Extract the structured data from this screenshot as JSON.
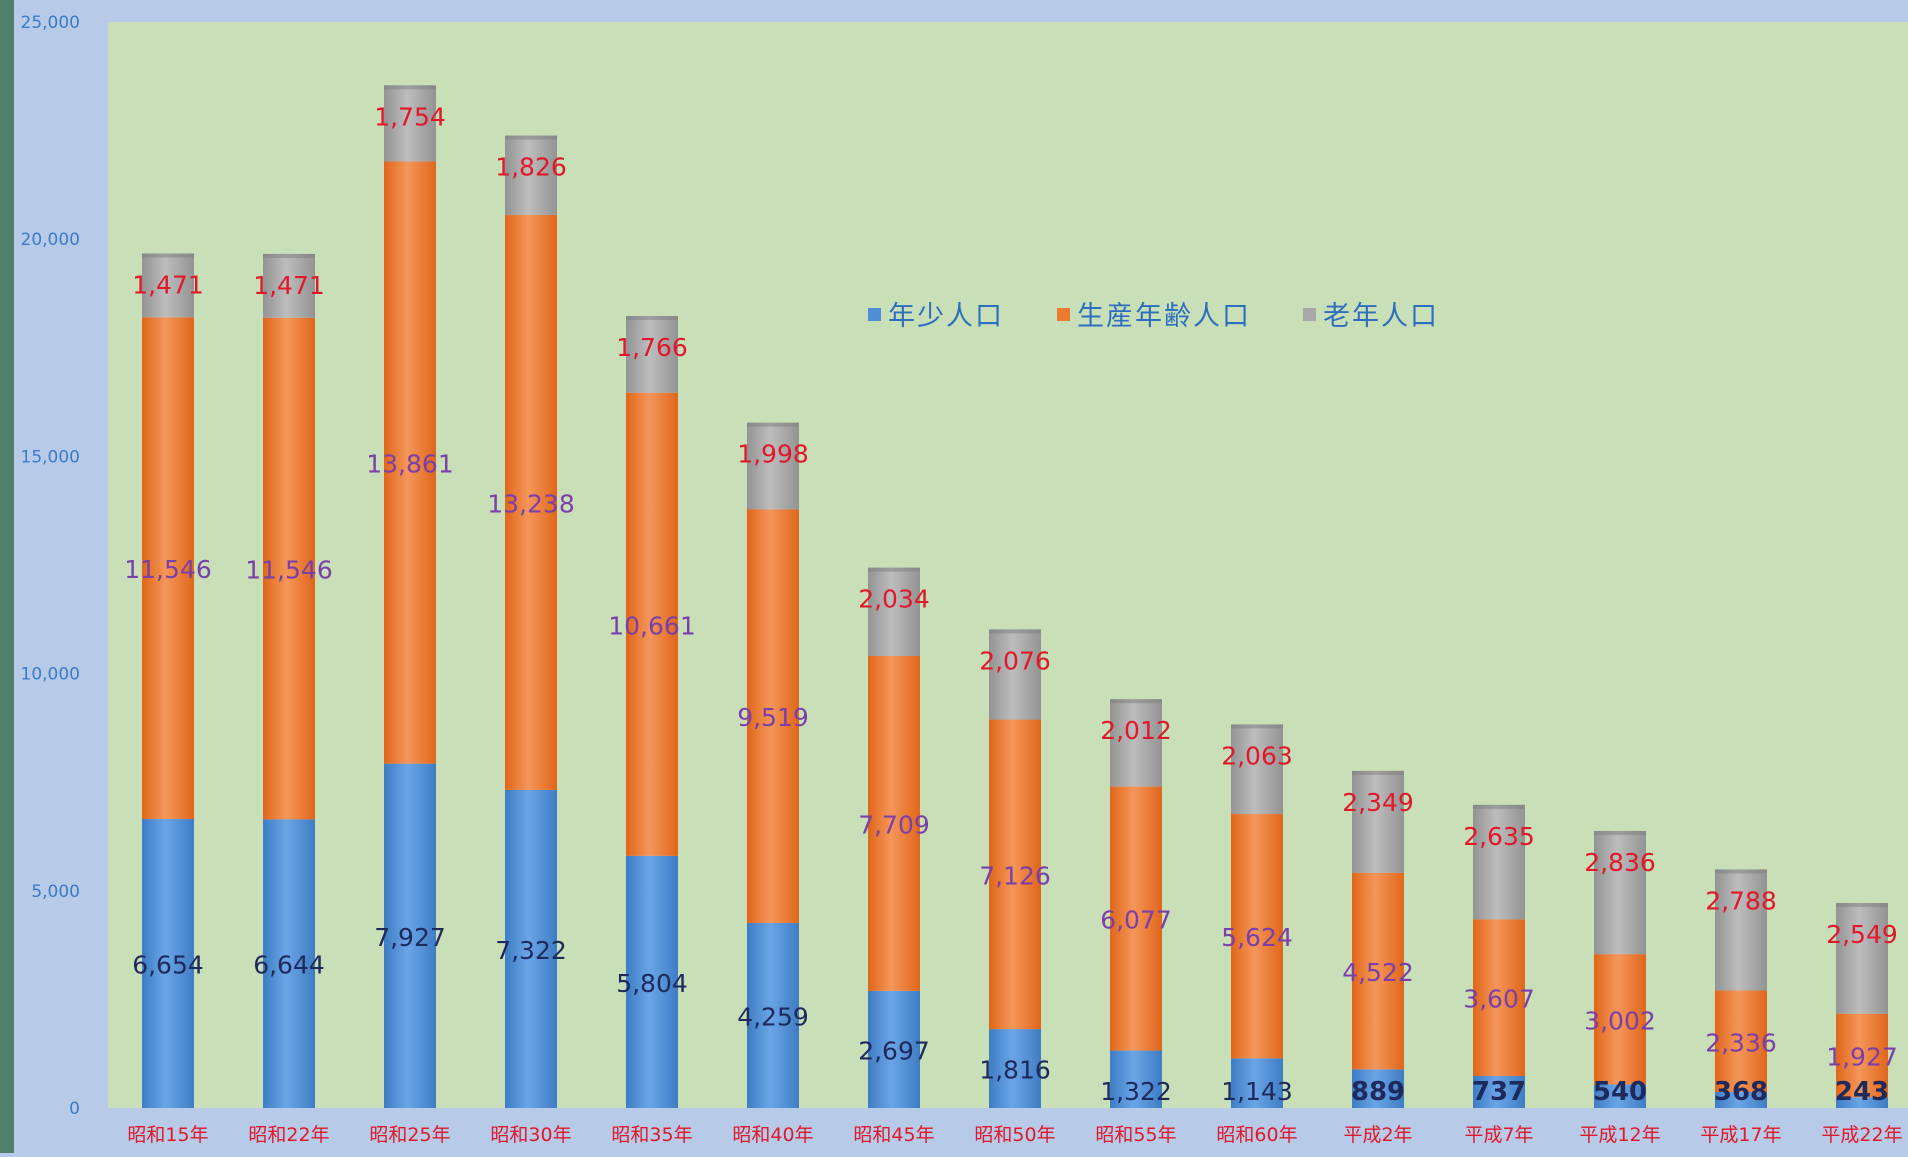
{
  "chart_data": {
    "type": "bar",
    "stacked": true,
    "categories": [
      "昭和15年",
      "昭和22年",
      "昭和25年",
      "昭和30年",
      "昭和35年",
      "昭和40年",
      "昭和45年",
      "昭和50年",
      "昭和55年",
      "昭和60年",
      "平成2年",
      "平成7年",
      "平成12年",
      "平成17年",
      "平成22年"
    ],
    "series": [
      {
        "name": "年少人口",
        "values": [
          6654,
          6644,
          7927,
          7322,
          5804,
          4259,
          2697,
          1816,
          1322,
          1143,
          889,
          737,
          540,
          368,
          243
        ],
        "labels": [
          "6,654",
          "6,644",
          "7,927",
          "7,322",
          "5,804",
          "4,259",
          "2,697",
          "1,816",
          "1,322",
          "1,143",
          "889",
          "737",
          "540",
          "368",
          "243"
        ]
      },
      {
        "name": "生産年齢人口",
        "values": [
          11546,
          11546,
          13861,
          13238,
          10661,
          9519,
          7709,
          7126,
          6077,
          5624,
          4522,
          3607,
          3002,
          2336,
          1927
        ],
        "labels": [
          "11,546",
          "11,546",
          "13,861",
          "13,238",
          "10,661",
          "9,519",
          "7,709",
          "7,126",
          "6,077",
          "5,624",
          "4,522",
          "3,607",
          "3,002",
          "2,336",
          "1,927"
        ]
      },
      {
        "name": "老年人口",
        "values": [
          1471,
          1471,
          1754,
          1826,
          1766,
          1998,
          2034,
          2076,
          2012,
          2063,
          2349,
          2635,
          2836,
          2788,
          2549
        ],
        "labels": [
          "1,471",
          "1,471",
          "1,754",
          "1,826",
          "1,766",
          "1,998",
          "2,034",
          "2,076",
          "2,012",
          "2,063",
          "2,349",
          "2,635",
          "2,836",
          "2,788",
          "2,549"
        ]
      }
    ],
    "ylim": [
      0,
      25000
    ],
    "yticks": [
      "0",
      "5,000",
      "10,000",
      "15,000",
      "20,000",
      "25,000"
    ],
    "legend_position": "top-center",
    "colors": {
      "series": [
        "#4f8fd8",
        "#ee7a2e",
        "#a8a8a8"
      ],
      "labels": [
        "#1f2a5c",
        "#7a3fa8",
        "#e0182a"
      ],
      "plot_background": "#c9dfb8",
      "page_background": "#b7cbe8",
      "axis_text": "#3b7bc8",
      "category_text": "#e0182a"
    }
  }
}
